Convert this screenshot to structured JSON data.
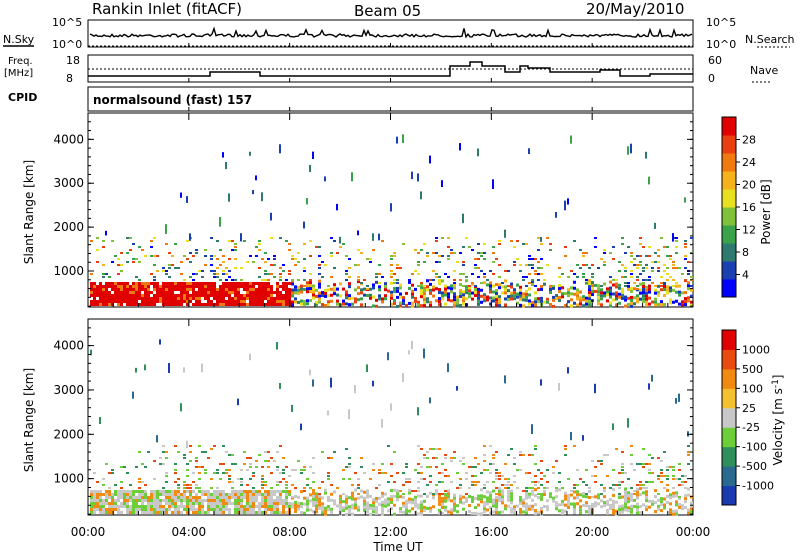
{
  "header": {
    "station": "Rankin Inlet (fitACF)",
    "beam": "Beam 05",
    "date": "20/May/2010"
  },
  "status_panels": {
    "nsky_label": "N.Sky",
    "nsky_ticks": [
      "10^5",
      "10^0"
    ],
    "nsearch_label": "N.Search",
    "freq_label_line1": "Freq.",
    "freq_label_line2": "[MHz]",
    "freq_ticks": [
      "18",
      "8"
    ],
    "nave_label": "Nave",
    "nave_ticks": [
      "60",
      "0"
    ],
    "cpid_label": "CPID",
    "cpid_value": "normalsound (fast) 157"
  },
  "chart_data": [
    {
      "type": "heatmap",
      "name": "power",
      "ylabel": "Slant Range [km]",
      "xlabel": "",
      "xlim": [
        "00:00",
        "24:00"
      ],
      "ylim": [
        180,
        4600
      ],
      "yticks": [
        "1000",
        "2000",
        "3000",
        "4000"
      ],
      "colorbar": {
        "label": "Power [dB]",
        "ticks": [
          "28",
          "24",
          "20",
          "16",
          "12",
          "8",
          "4"
        ],
        "colors": [
          "#0000ff",
          "#1a3fb0",
          "#2f7a6e",
          "#3aa34a",
          "#7fc23a",
          "#e8e020",
          "#f5b21a",
          "#f07a10",
          "#e84010",
          "#e00000"
        ]
      }
    },
    {
      "type": "heatmap",
      "name": "velocity",
      "ylabel": "Slant Range [km]",
      "xlabel": "Time UT",
      "xticks": [
        "00:00",
        "04:00",
        "08:00",
        "12:00",
        "16:00",
        "20:00",
        "00:00"
      ],
      "ylim": [
        180,
        4600
      ],
      "yticks": [
        "1000",
        "2000",
        "3000",
        "4000"
      ],
      "colorbar": {
        "label": "Velocity [m s^-1]",
        "ticks": [
          "1000",
          "500",
          "100",
          "25",
          "-25",
          "-100",
          "-500",
          "-1000"
        ],
        "colors": [
          "#1a3ab0",
          "#2a6a90",
          "#2f8f5a",
          "#6ccf3a",
          "#c8c8c8",
          "#f5c030",
          "#f08a10",
          "#e84a10",
          "#e00000"
        ]
      }
    }
  ]
}
